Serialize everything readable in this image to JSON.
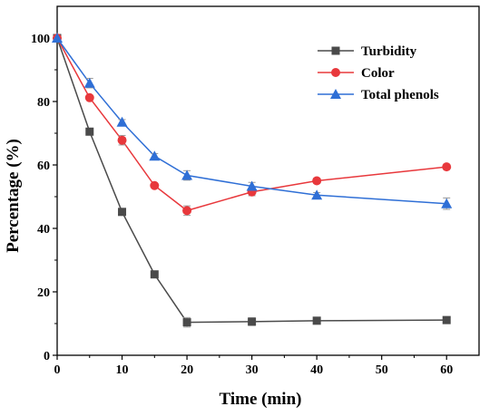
{
  "chart_data": {
    "type": "line",
    "xlabel": "Time (min)",
    "ylabel": "Percentage (%)",
    "xlim": [
      0,
      65
    ],
    "ylim": [
      0,
      110
    ],
    "x_ticks": [
      0,
      10,
      20,
      30,
      40,
      50,
      60
    ],
    "y_ticks": [
      0,
      20,
      40,
      60,
      80,
      100
    ],
    "legend_position": "top-right",
    "grid": false,
    "series": [
      {
        "name": "Turbidity",
        "marker": "square",
        "color": "#4a4a4a",
        "x": [
          0,
          5,
          10,
          15,
          20,
          30,
          40,
          60
        ],
        "y": [
          100,
          70.5,
          45.2,
          25.5,
          10.4,
          10.6,
          10.9,
          11.1
        ],
        "error": [
          0,
          0,
          0,
          0,
          1.5,
          1.2,
          0.6,
          0.8
        ]
      },
      {
        "name": "Color",
        "marker": "circle",
        "color": "#e8383c",
        "x": [
          0,
          5,
          10,
          15,
          20,
          30,
          40,
          60
        ],
        "y": [
          100,
          81.2,
          67.8,
          53.5,
          45.6,
          51.5,
          55.0,
          59.4
        ],
        "error": [
          0,
          0,
          1.5,
          0,
          1.5,
          1.2,
          0.8,
          0.6
        ]
      },
      {
        "name": "Total phenols",
        "marker": "triangle",
        "color": "#2f6fd6",
        "x": [
          0,
          5,
          10,
          15,
          20,
          30,
          40,
          60
        ],
        "y": [
          100,
          85.8,
          73.5,
          62.8,
          56.7,
          53.3,
          50.5,
          47.8
        ],
        "error": [
          0,
          1.5,
          0.8,
          0.8,
          1.5,
          1.2,
          0.8,
          1.8
        ]
      }
    ]
  }
}
